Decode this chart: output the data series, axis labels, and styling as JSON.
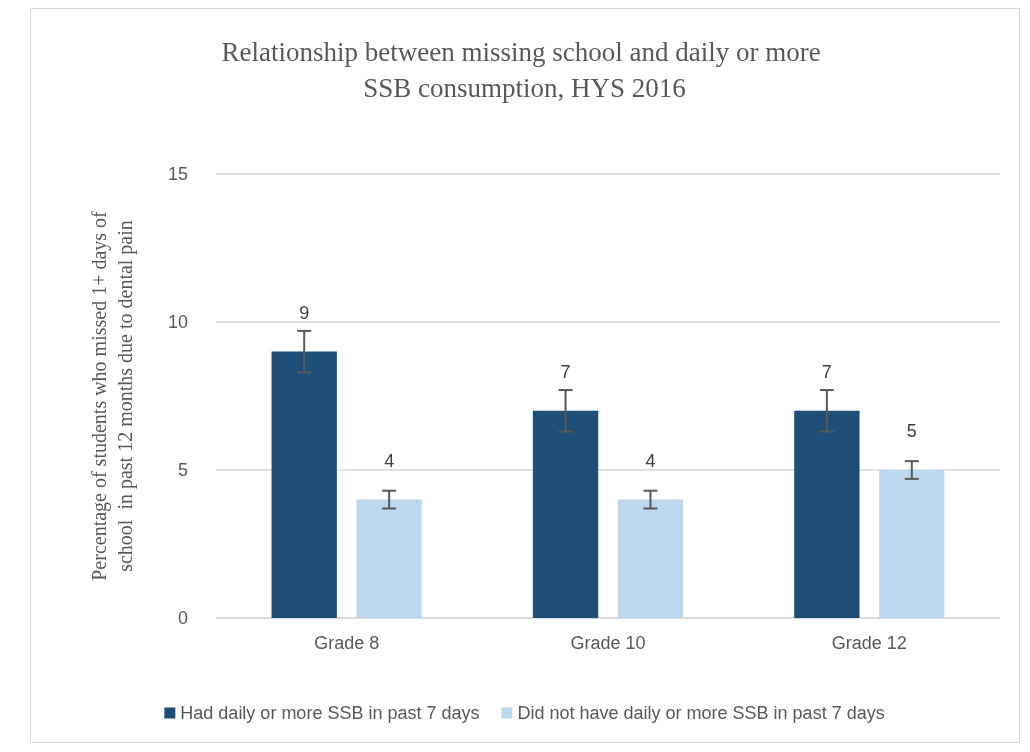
{
  "chart_data": {
    "type": "bar",
    "title": "Relationship between missing school and daily or more SSB consumption, HYS 2016",
    "ylabel": "Percentage of students who missed 1+ days of\nschool  in past 12 months due to dental pain",
    "categories": [
      "Grade 8",
      "Grade 10",
      "Grade 12"
    ],
    "series": [
      {
        "name": "Had daily or more SSB in past 7 days",
        "color": "#1f4e79",
        "values": [
          9,
          7,
          7
        ],
        "errors": [
          0.7,
          0.7,
          0.7
        ]
      },
      {
        "name": "Did not have daily or more SSB in past 7 days",
        "color": "#bdd7ee",
        "values": [
          4,
          4,
          5
        ],
        "errors": [
          0.3,
          0.3,
          0.3
        ]
      }
    ],
    "ylim": [
      0,
      15
    ],
    "yticks": [
      0,
      5,
      10,
      15
    ],
    "grid": "y",
    "legend": "bottom",
    "data_labels": true
  }
}
